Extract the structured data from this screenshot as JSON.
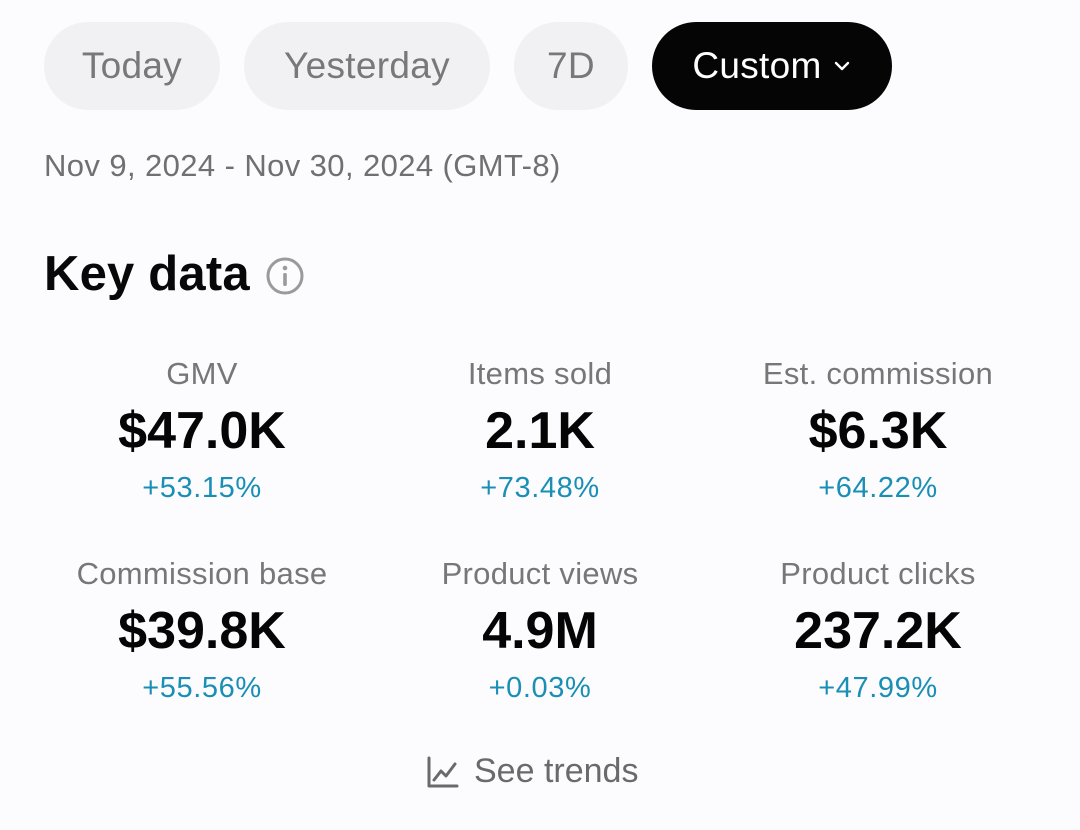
{
  "filters": {
    "today": "Today",
    "yesterday": "Yesterday",
    "seven_days": "7D",
    "custom": "Custom"
  },
  "date_range": "Nov 9, 2024 - Nov 30, 2024 (GMT-8)",
  "section": {
    "title": "Key data",
    "info_icon": "info-icon"
  },
  "metrics": [
    {
      "label": "GMV",
      "value": "$47.0K",
      "change": "+53.15%"
    },
    {
      "label": "Items sold",
      "value": "2.1K",
      "change": "+73.48%"
    },
    {
      "label": "Est. commission",
      "value": "$6.3K",
      "change": "+64.22%"
    },
    {
      "label": "Commission base",
      "value": "$39.8K",
      "change": "+55.56%"
    },
    {
      "label": "Product views",
      "value": "4.9M",
      "change": "+0.03%"
    },
    {
      "label": "Product clicks",
      "value": "237.2K",
      "change": "+47.99%"
    }
  ],
  "see_trends": {
    "label": "See trends",
    "icon": "line-chart-icon"
  },
  "colors": {
    "active_chip": "#050505",
    "inactive_chip": "#f1f1f3",
    "positive_change": "#1a8fb5"
  }
}
